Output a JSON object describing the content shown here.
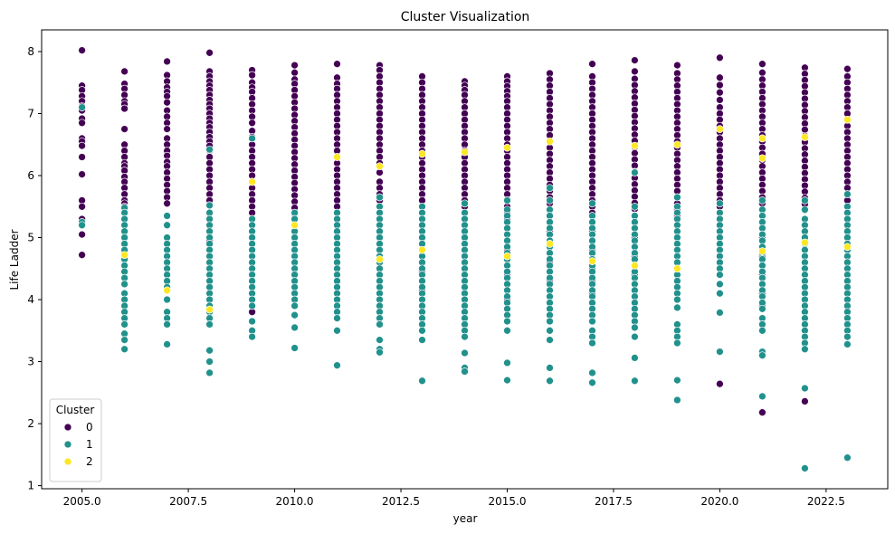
{
  "chart_data": {
    "type": "scatter",
    "title": "Cluster Visualization",
    "xlabel": "year",
    "ylabel": "Life Ladder",
    "xlim": [
      2004.05,
      2023.95
    ],
    "ylim": [
      0.95,
      8.35
    ],
    "x_ticks": [
      2005.0,
      2007.5,
      2010.0,
      2012.5,
      2015.0,
      2017.5,
      2020.0,
      2022.5
    ],
    "x_tick_labels": [
      "2005.0",
      "2007.5",
      "2010.0",
      "2012.5",
      "2015.0",
      "2017.5",
      "2020.0",
      "2022.5"
    ],
    "y_ticks": [
      1,
      2,
      3,
      4,
      5,
      6,
      7,
      8
    ],
    "y_tick_labels": [
      "1",
      "2",
      "3",
      "4",
      "5",
      "6",
      "7",
      "8"
    ],
    "grid": false,
    "legend": {
      "title": "Cluster",
      "placement": "lower-left",
      "entries": [
        "0",
        "1",
        "2"
      ]
    },
    "colors": {
      "0": "#440154",
      "1": "#21918c",
      "2": "#fde725"
    },
    "series": [
      {
        "name": "0",
        "points": {
          "2005": [
            8.02,
            7.45,
            7.38,
            7.28,
            7.2,
            7.12,
            7.05,
            6.92,
            6.85,
            6.6,
            6.55,
            6.48,
            6.3,
            6.02,
            5.6,
            5.5,
            5.3,
            5.05,
            4.72
          ],
          "2006": [
            7.68,
            7.48,
            7.4,
            7.3,
            7.2,
            7.15,
            7.08,
            6.75,
            6.5,
            6.4,
            6.3,
            6.2,
            6.15,
            6.08,
            5.98,
            5.9,
            5.8,
            5.7,
            5.6,
            5.55,
            5.5
          ],
          "2007": [
            7.84,
            7.62,
            7.52,
            7.42,
            7.35,
            7.28,
            7.18,
            7.05,
            6.95,
            6.85,
            6.75,
            6.6,
            6.5,
            6.4,
            6.32,
            6.22,
            6.15,
            6.05,
            5.95,
            5.85,
            5.75,
            5.65,
            5.55
          ],
          "2008": [
            7.98,
            7.68,
            7.6,
            7.52,
            7.45,
            7.38,
            7.3,
            7.22,
            7.15,
            7.08,
            7.0,
            6.92,
            6.85,
            6.78,
            6.7,
            6.62,
            6.55,
            6.48,
            6.4,
            6.3,
            6.2,
            6.1,
            6.0,
            5.9,
            5.8,
            5.7,
            5.6,
            5.52,
            4.95,
            4.4,
            4.2
          ],
          "2009": [
            7.7,
            7.62,
            7.5,
            7.42,
            7.35,
            7.25,
            7.15,
            7.05,
            6.95,
            6.85,
            6.72,
            6.62,
            6.5,
            6.4,
            6.3,
            6.2,
            6.1,
            6.0,
            5.9,
            5.8,
            5.7,
            5.6,
            5.5,
            5.4,
            5.3,
            5.2,
            3.8
          ],
          "2010": [
            7.78,
            7.66,
            7.55,
            7.48,
            7.38,
            7.28,
            7.18,
            7.08,
            6.98,
            6.88,
            6.78,
            6.68,
            6.58,
            6.48,
            6.38,
            6.28,
            6.18,
            6.08,
            5.98,
            5.88,
            5.78,
            5.68,
            5.58,
            5.48,
            5.38,
            5.1,
            4.8,
            4.6,
            4.42
          ],
          "2011": [
            7.8,
            7.58,
            7.48,
            7.4,
            7.3,
            7.2,
            7.1,
            7.0,
            6.9,
            6.8,
            6.7,
            6.6,
            6.5,
            6.4,
            6.3,
            6.2,
            6.1,
            6.0,
            5.9,
            5.8,
            5.7,
            5.6,
            5.5,
            5.4,
            5.1,
            4.7,
            4.4,
            4.1
          ],
          "2012": [
            7.78,
            7.7,
            7.6,
            7.5,
            7.4,
            7.3,
            7.2,
            7.1,
            7.0,
            6.9,
            6.8,
            6.7,
            6.6,
            6.5,
            6.4,
            6.3,
            6.2,
            6.05,
            5.9,
            5.8,
            5.7,
            5.6,
            5.5,
            5.4,
            5.3,
            5.0,
            4.6,
            4.2
          ],
          "2013": [
            7.6,
            7.5,
            7.4,
            7.3,
            7.2,
            7.1,
            7.0,
            6.9,
            6.8,
            6.7,
            6.6,
            6.5,
            6.4,
            6.3,
            6.2,
            6.1,
            6.0,
            5.9,
            5.8,
            5.7,
            5.6,
            5.5,
            5.4,
            5.3,
            5.2,
            4.9,
            4.45,
            4.15
          ],
          "2014": [
            7.52,
            7.45,
            7.38,
            7.3,
            7.2,
            7.1,
            7.0,
            6.9,
            6.8,
            6.7,
            6.6,
            6.5,
            6.4,
            6.3,
            6.2,
            6.1,
            6.0,
            5.9,
            5.8,
            5.7,
            5.6,
            5.5,
            5.4,
            5.3,
            5.0,
            4.8,
            4.6,
            4.4
          ],
          "2015": [
            7.6,
            7.52,
            7.44,
            7.36,
            7.28,
            7.2,
            7.1,
            7.0,
            6.9,
            6.8,
            6.7,
            6.6,
            6.5,
            6.4,
            6.3,
            6.2,
            6.1,
            6.0,
            5.9,
            5.8,
            5.7,
            5.6,
            5.5,
            5.4,
            5.3,
            4.8,
            4.4,
            4.0
          ],
          "2016": [
            7.65,
            7.55,
            7.45,
            7.35,
            7.25,
            7.15,
            7.05,
            6.95,
            6.85,
            6.75,
            6.65,
            6.55,
            6.45,
            6.35,
            6.25,
            6.15,
            6.05,
            5.95,
            5.85,
            5.75,
            5.65,
            5.55,
            5.45,
            5.35,
            5.1,
            4.6,
            4.3
          ],
          "2017": [
            7.8,
            7.6,
            7.5,
            7.4,
            7.3,
            7.2,
            7.1,
            7.0,
            6.9,
            6.8,
            6.7,
            6.6,
            6.5,
            6.4,
            6.3,
            6.2,
            6.1,
            6.0,
            5.9,
            5.8,
            5.7,
            5.6,
            5.5,
            5.4,
            5.1,
            4.8,
            4.5,
            4.3,
            4.1
          ],
          "2018": [
            7.86,
            7.68,
            7.56,
            7.46,
            7.36,
            7.26,
            7.16,
            7.06,
            6.96,
            6.86,
            6.76,
            6.66,
            6.56,
            6.46,
            6.36,
            6.26,
            6.16,
            6.06,
            5.96,
            5.86,
            5.76,
            5.66,
            5.56,
            5.46,
            5.36,
            5.0,
            4.7,
            4.4
          ],
          "2019": [
            7.78,
            7.65,
            7.55,
            7.45,
            7.35,
            7.25,
            7.15,
            7.05,
            6.95,
            6.85,
            6.75,
            6.65,
            6.55,
            6.45,
            6.35,
            6.25,
            6.15,
            6.05,
            5.95,
            5.85,
            5.75,
            5.65,
            5.55,
            5.45,
            5.35,
            5.1,
            4.9,
            4.6,
            4.3,
            4.0
          ],
          "2020": [
            7.9,
            7.58,
            7.46,
            7.34,
            7.22,
            7.1,
            7.0,
            6.9,
            6.8,
            6.7,
            6.6,
            6.5,
            6.4,
            6.3,
            6.2,
            6.1,
            6.0,
            5.9,
            5.8,
            5.7,
            5.6,
            5.5,
            5.4,
            5.3,
            5.1,
            4.9,
            4.6,
            4.4,
            4.1,
            2.64
          ],
          "2021": [
            7.8,
            7.66,
            7.55,
            7.45,
            7.35,
            7.25,
            7.15,
            7.05,
            6.95,
            6.85,
            6.75,
            6.65,
            6.55,
            6.45,
            6.35,
            6.25,
            6.15,
            6.05,
            5.95,
            5.85,
            5.75,
            5.65,
            5.55,
            5.45,
            5.35,
            5.0,
            4.7,
            4.4,
            4.1,
            3.9,
            2.18
          ],
          "2022": [
            7.74,
            7.64,
            7.54,
            7.44,
            7.34,
            7.24,
            7.14,
            7.04,
            6.94,
            6.84,
            6.74,
            6.64,
            6.54,
            6.44,
            6.34,
            6.24,
            6.14,
            6.04,
            5.94,
            5.84,
            5.74,
            5.64,
            5.54,
            5.44,
            5.3,
            5.0,
            4.6,
            4.3,
            4.0,
            3.6,
            2.36
          ],
          "2023": [
            7.72,
            7.6,
            7.5,
            7.4,
            7.3,
            7.2,
            7.1,
            7.0,
            6.9,
            6.8,
            6.7,
            6.6,
            6.5,
            6.4,
            6.3,
            6.2,
            6.1,
            6.0,
            5.9,
            5.8,
            5.7,
            5.6,
            5.5,
            5.4,
            5.3,
            5.1,
            4.6,
            4.3,
            4.1,
            3.88
          ]
        }
      },
      {
        "name": "1",
        "points": {
          "2005": [
            7.1,
            5.25,
            5.2
          ],
          "2006": [
            5.48,
            5.4,
            5.3,
            5.2,
            5.1,
            5.0,
            4.9,
            4.8,
            4.65,
            4.55,
            4.45,
            4.35,
            4.25,
            4.1,
            4.0,
            3.9,
            3.8,
            3.7,
            3.6,
            3.45,
            3.35,
            3.2
          ],
          "2007": [
            5.35,
            5.2,
            5.0,
            4.9,
            4.8,
            4.7,
            4.6,
            4.5,
            4.4,
            4.3,
            4.2,
            4.0,
            3.8,
            3.7,
            3.6,
            3.28
          ],
          "2008": [
            6.42,
            5.52,
            5.4,
            5.3,
            5.2,
            5.1,
            5.0,
            4.9,
            4.8,
            4.7,
            4.6,
            4.5,
            4.4,
            4.3,
            4.2,
            4.1,
            4.0,
            3.9,
            3.8,
            3.7,
            3.6,
            3.18,
            3.0,
            2.82
          ],
          "2009": [
            6.6,
            5.3,
            5.2,
            5.1,
            5.0,
            4.9,
            4.8,
            4.7,
            4.6,
            4.5,
            4.4,
            4.3,
            4.2,
            4.1,
            4.0,
            3.9,
            3.65,
            3.5,
            3.4
          ],
          "2010": [
            5.4,
            5.3,
            5.2,
            5.1,
            5.0,
            4.9,
            4.8,
            4.7,
            4.6,
            4.5,
            4.4,
            4.3,
            4.2,
            4.1,
            4.0,
            3.9,
            3.75,
            3.55,
            3.22
          ],
          "2011": [
            5.4,
            5.3,
            5.2,
            5.1,
            5.0,
            4.9,
            4.8,
            4.7,
            4.6,
            4.5,
            4.4,
            4.3,
            4.2,
            4.1,
            4.0,
            3.9,
            3.8,
            3.7,
            3.5,
            2.94
          ],
          "2012": [
            5.65,
            5.5,
            5.4,
            5.3,
            5.2,
            5.1,
            5.0,
            4.9,
            4.8,
            4.7,
            4.6,
            4.5,
            4.4,
            4.3,
            4.2,
            4.1,
            4.0,
            3.9,
            3.8,
            3.7,
            3.6,
            3.35,
            3.2,
            3.15
          ],
          "2013": [
            5.5,
            5.4,
            5.3,
            5.2,
            5.1,
            5.0,
            4.9,
            4.8,
            4.7,
            4.6,
            4.5,
            4.4,
            4.3,
            4.2,
            4.1,
            4.0,
            3.9,
            3.8,
            3.7,
            3.6,
            3.5,
            3.35,
            2.69
          ],
          "2014": [
            5.55,
            5.4,
            5.3,
            5.2,
            5.1,
            5.0,
            4.9,
            4.8,
            4.7,
            4.6,
            4.5,
            4.4,
            4.3,
            4.2,
            4.1,
            4.0,
            3.9,
            3.8,
            3.7,
            3.6,
            3.5,
            3.4,
            3.14,
            2.9,
            2.84
          ],
          "2015": [
            5.6,
            5.45,
            5.35,
            5.25,
            5.15,
            5.05,
            4.95,
            4.85,
            4.75,
            4.65,
            4.55,
            4.45,
            4.35,
            4.25,
            4.15,
            4.05,
            3.95,
            3.85,
            3.75,
            3.65,
            3.5,
            2.98,
            2.7
          ],
          "2016": [
            5.8,
            5.6,
            5.45,
            5.35,
            5.25,
            5.15,
            5.05,
            4.95,
            4.85,
            4.75,
            4.65,
            4.55,
            4.45,
            4.35,
            4.25,
            4.15,
            4.05,
            3.95,
            3.85,
            3.75,
            3.65,
            3.5,
            3.35,
            2.9,
            2.69
          ],
          "2017": [
            5.55,
            5.35,
            5.25,
            5.15,
            5.05,
            4.95,
            4.85,
            4.75,
            4.65,
            4.55,
            4.45,
            4.35,
            4.25,
            4.15,
            4.05,
            3.95,
            3.85,
            3.75,
            3.65,
            3.5,
            3.4,
            3.3,
            2.82,
            2.66
          ],
          "2018": [
            6.05,
            5.5,
            5.35,
            5.25,
            5.15,
            5.05,
            4.95,
            4.85,
            4.75,
            4.65,
            4.55,
            4.45,
            4.35,
            4.25,
            4.15,
            4.05,
            3.95,
            3.85,
            3.75,
            3.65,
            3.55,
            3.4,
            3.06,
            2.69
          ],
          "2019": [
            5.65,
            5.5,
            5.4,
            5.3,
            5.2,
            5.1,
            5.0,
            4.9,
            4.8,
            4.7,
            4.6,
            4.5,
            4.4,
            4.3,
            4.2,
            4.1,
            4.0,
            3.87,
            3.6,
            3.5,
            3.4,
            3.3,
            2.7,
            2.38
          ],
          "2020": [
            5.55,
            5.4,
            5.3,
            5.2,
            5.1,
            5.0,
            4.9,
            4.8,
            4.7,
            4.6,
            4.5,
            4.4,
            4.25,
            4.1,
            3.79,
            3.16
          ],
          "2021": [
            5.6,
            5.45,
            5.35,
            5.25,
            5.15,
            5.05,
            4.95,
            4.85,
            4.75,
            4.65,
            4.55,
            4.45,
            4.35,
            4.25,
            4.15,
            4.05,
            3.95,
            3.85,
            3.7,
            3.6,
            3.5,
            3.16,
            3.1,
            2.44
          ],
          "2022": [
            5.6,
            5.45,
            5.3,
            5.2,
            5.1,
            5.0,
            4.9,
            4.8,
            4.7,
            4.6,
            4.5,
            4.4,
            4.3,
            4.2,
            4.1,
            4.0,
            3.9,
            3.8,
            3.7,
            3.6,
            3.5,
            3.4,
            3.3,
            3.2,
            2.57,
            1.28
          ],
          "2023": [
            5.7,
            5.5,
            5.4,
            5.3,
            5.2,
            5.1,
            5.0,
            4.9,
            4.8,
            4.7,
            4.6,
            4.5,
            4.4,
            4.3,
            4.2,
            4.1,
            4.0,
            3.9,
            3.8,
            3.7,
            3.6,
            3.5,
            3.4,
            3.28,
            1.45
          ]
        }
      },
      {
        "name": "2",
        "points": {
          "2006": [
            4.72
          ],
          "2007": [
            4.15
          ],
          "2008": [
            3.84
          ],
          "2009": [
            5.9
          ],
          "2010": [
            5.2
          ],
          "2011": [
            6.3
          ],
          "2012": [
            6.15,
            4.65
          ],
          "2013": [
            6.35,
            4.8
          ],
          "2014": [
            6.38
          ],
          "2015": [
            6.45,
            4.7
          ],
          "2016": [
            6.55,
            4.9
          ],
          "2017": [
            4.62
          ],
          "2018": [
            6.48,
            4.55
          ],
          "2019": [
            6.5,
            4.5
          ],
          "2020": [
            6.75
          ],
          "2021": [
            6.6,
            6.28,
            4.78
          ],
          "2022": [
            6.62,
            4.92
          ],
          "2023": [
            6.9,
            4.85
          ]
        }
      }
    ]
  }
}
